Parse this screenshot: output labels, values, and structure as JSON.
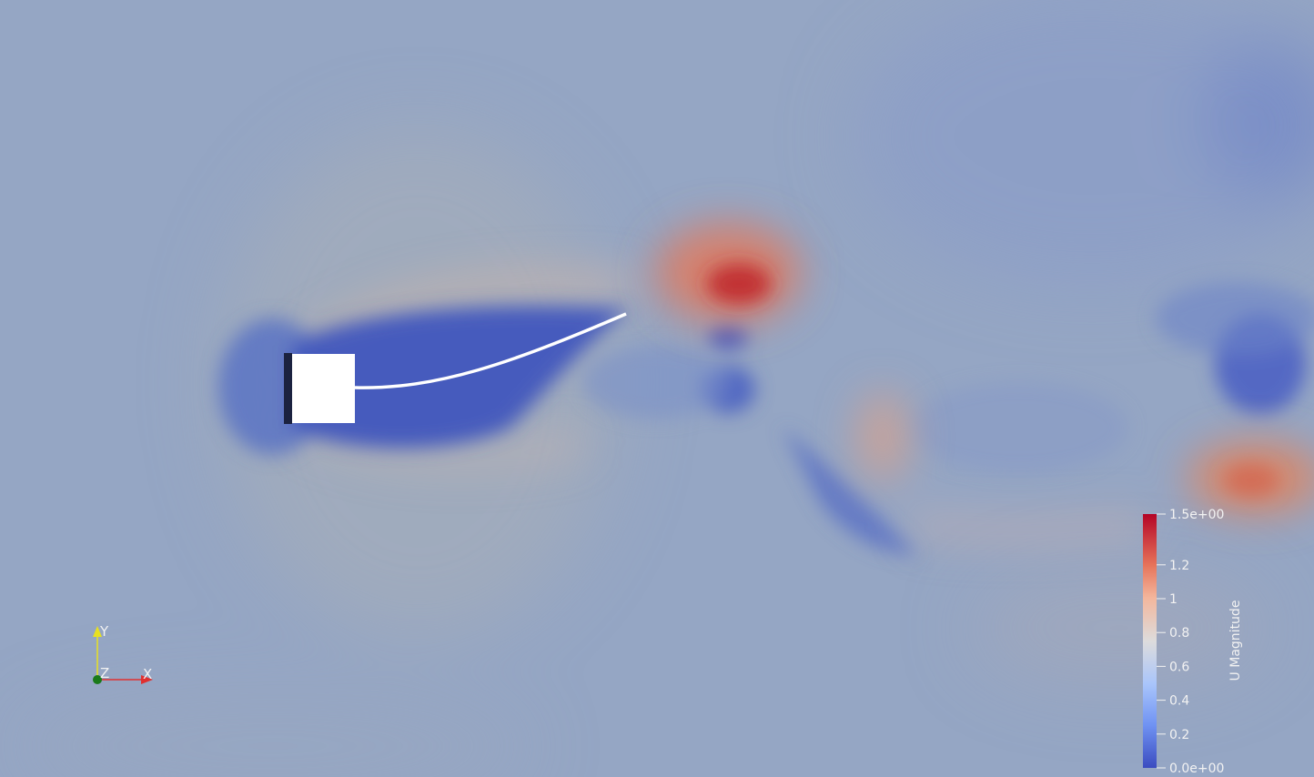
{
  "colorbar": {
    "title": "U Magnitude",
    "ticks": [
      {
        "value": 1.5,
        "label": "1.5e+00"
      },
      {
        "value": 1.2,
        "label": "1.2"
      },
      {
        "value": 1.0,
        "label": "1"
      },
      {
        "value": 0.8,
        "label": "0.8"
      },
      {
        "value": 0.6,
        "label": "0.6"
      },
      {
        "value": 0.4,
        "label": "0.4"
      },
      {
        "value": 0.2,
        "label": "0.2"
      },
      {
        "value": 0.0,
        "label": "0.0e+00"
      }
    ],
    "range": [
      0,
      1.5
    ],
    "colors": {
      "high": "#b40426",
      "mid": "#dddcdc",
      "low": "#3b4cc0"
    }
  },
  "axes": {
    "x_label": "X",
    "y_label": "Y",
    "z_label": "Z",
    "x_color": "#e03030",
    "y_color": "#e8e020",
    "z_color": "#1a7a1a"
  },
  "scene": {
    "background_color": "#95a6c4"
  }
}
